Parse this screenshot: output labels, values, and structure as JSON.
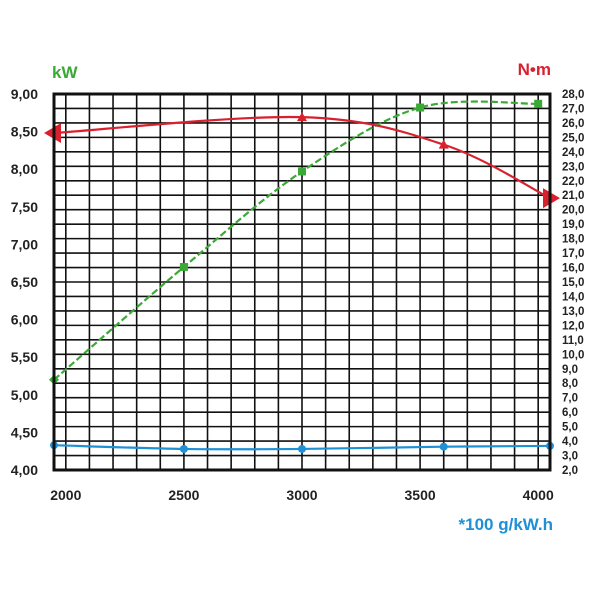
{
  "chart_data": {
    "type": "line",
    "x_ticks": [
      2000,
      2500,
      3000,
      3500,
      4000
    ],
    "xlim": [
      1950,
      4050
    ],
    "axes": {
      "left": {
        "label": "kW",
        "color": "#3aa935",
        "ylim": [
          4.0,
          9.0
        ],
        "ticks": [
          "4,00",
          "4,50",
          "5,00",
          "5,50",
          "6,00",
          "6,50",
          "7,00",
          "7,50",
          "8,00",
          "8,50",
          "9,00"
        ]
      },
      "right": {
        "label": "N•m",
        "color": "#d9212e",
        "ylim": [
          2.0,
          28.0
        ],
        "ticks": [
          "2,0",
          "3,0",
          "4,0",
          "5,0",
          "6,0",
          "7,0",
          "8,0",
          "9,0",
          "10,0",
          "11,0",
          "12,0",
          "13,0",
          "14,0",
          "15,0",
          "16,0",
          "17,0",
          "18,0",
          "19,0",
          "20,0",
          "21,0",
          "22,0",
          "23,0",
          "24,0",
          "25,0",
          "26,0",
          "27,0",
          "28,0"
        ]
      },
      "bottom_right": {
        "label": "*100 g/kW.h",
        "color": "#1e90d6"
      }
    },
    "series": [
      {
        "id": "power",
        "axis": "left",
        "color": "#3aa935",
        "dashed": true,
        "marker": "square",
        "x": [
          1950,
          2500,
          3000,
          3500,
          4000
        ],
        "y": [
          5.2,
          6.7,
          7.97,
          8.82,
          8.87
        ]
      },
      {
        "id": "torque",
        "axis": "right",
        "color": "#d9212e",
        "dashed": false,
        "marker": "triangle",
        "x": [
          1950,
          3000,
          3600,
          4050
        ],
        "y": [
          25.3,
          26.4,
          24.5,
          20.8
        ]
      },
      {
        "id": "consumption",
        "axis": "left",
        "color": "#1e90d6",
        "dashed": false,
        "marker": "circle",
        "x": [
          1950,
          2500,
          3000,
          3600,
          4050
        ],
        "y": [
          4.33,
          4.28,
          4.28,
          4.31,
          4.32
        ]
      }
    ]
  }
}
